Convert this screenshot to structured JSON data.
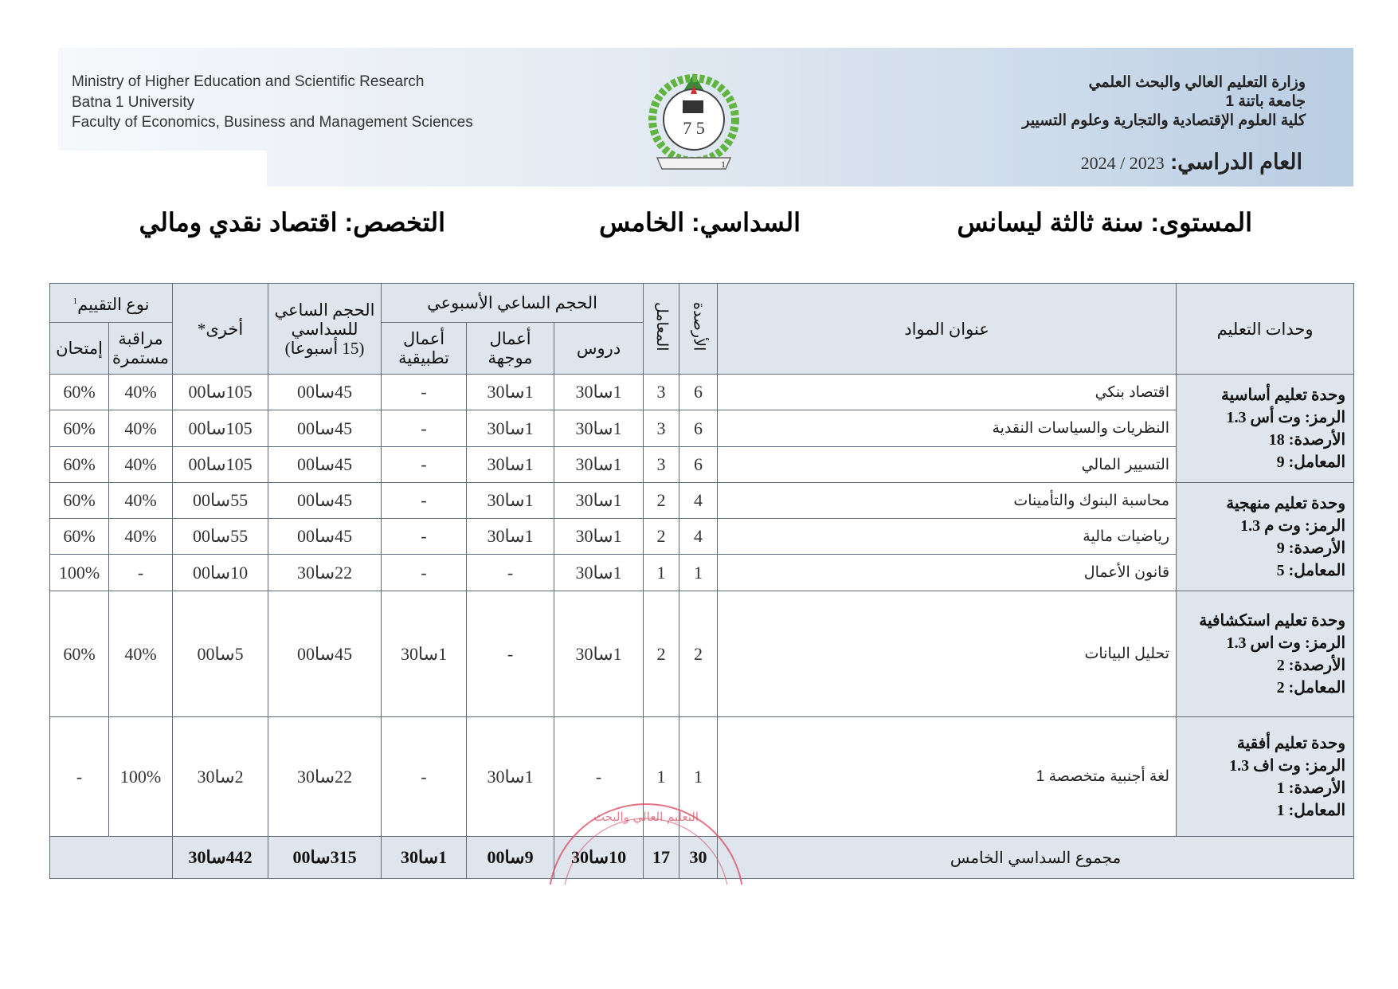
{
  "header": {
    "en_lines": [
      "Ministry of Higher Education and Scientific Research",
      "Batna 1 University",
      "Faculty of Economics, Business and Management Sciences"
    ],
    "ar_lines": [
      "وزارة التعليم العالي والبحث العلمي",
      "جامعة باتنة 1",
      "كلية العلوم الإقتصادية والتجارية وعلوم التسيير"
    ],
    "year_label": "العام الدراسي:",
    "year_value": "2024 / 2023",
    "logo": "university-crest"
  },
  "meta": {
    "level": "المستوى: سنة ثالثة ليسانس",
    "semester": "السداسي: الخامس",
    "specialty": "التخصص: اقتصاد نقدي ومالي"
  },
  "table": {
    "headers": {
      "units": "وحدات التعليم",
      "subject": "عنوان المواد",
      "credits": "الأرصدة",
      "coef": "المعامل",
      "weekly": "الحجم الساعي الأسبوعي",
      "lectures": "دروس",
      "td": "أعمال موجهة",
      "tp": "أعمال تطبيقية",
      "semester_volume_1": "الحجم الساعي",
      "semester_volume_2": "للسداسي",
      "semester_volume_3": "(15 أسبوعا)",
      "other": "أخرى*",
      "evaluation": "نوع التقييم",
      "evaluation_note": "1",
      "continuous": "مراقبة مستمرة",
      "exam": "إمتحان"
    },
    "units": [
      {
        "name": "وحدة تعليم أساسية",
        "code": "الرمز: وت أس 1.3",
        "credits": "الأرصدة: 18",
        "coef": "المعامل: 9"
      },
      {
        "name": "وحدة تعليم منهجية",
        "code": "الرمز: وت م 1.3",
        "credits": "الأرصدة: 9",
        "coef": "المعامل: 5"
      },
      {
        "name": "وحدة تعليم استكشافية",
        "code": "الرمز: وت اس 1.3",
        "credits": "الأرصدة: 2",
        "coef": "المعامل: 2"
      },
      {
        "name": "وحدة تعليم أفقية",
        "code": "الرمز: وت اف 1.3",
        "credits": "الأرصدة: 1",
        "coef": "المعامل: 1"
      }
    ],
    "rows": [
      {
        "subject": "اقتصاد بنكي",
        "credits": "6",
        "coef": "3",
        "lectures": "1سا30",
        "td": "1سا30",
        "tp": "-",
        "semester": "45سا00",
        "other": "105سا00",
        "continuous": "40%",
        "exam": "60%"
      },
      {
        "subject": "النظريات والسياسات النقدية",
        "credits": "6",
        "coef": "3",
        "lectures": "1سا30",
        "td": "1سا30",
        "tp": "-",
        "semester": "45سا00",
        "other": "105سا00",
        "continuous": "40%",
        "exam": "60%"
      },
      {
        "subject": "التسيير المالي",
        "credits": "6",
        "coef": "3",
        "lectures": "1سا30",
        "td": "1سا30",
        "tp": "-",
        "semester": "45سا00",
        "other": "105سا00",
        "continuous": "40%",
        "exam": "60%"
      },
      {
        "subject": "محاسبة البنوك والتأمينات",
        "credits": "4",
        "coef": "2",
        "lectures": "1سا30",
        "td": "1سا30",
        "tp": "-",
        "semester": "45سا00",
        "other": "55سا00",
        "continuous": "40%",
        "exam": "60%"
      },
      {
        "subject": "رياضيات مالية",
        "credits": "4",
        "coef": "2",
        "lectures": "1سا30",
        "td": "1سا30",
        "tp": "-",
        "semester": "45سا00",
        "other": "55سا00",
        "continuous": "40%",
        "exam": "60%"
      },
      {
        "subject": "قانون الأعمال",
        "credits": "1",
        "coef": "1",
        "lectures": "1سا30",
        "td": "-",
        "tp": "-",
        "semester": "22سا30",
        "other": "10سا00",
        "continuous": "-",
        "exam": "100%"
      },
      {
        "subject": "تحليل البيانات",
        "credits": "2",
        "coef": "2",
        "lectures": "1سا30",
        "td": "-",
        "tp": "1سا30",
        "semester": "45سا00",
        "other": "5سا00",
        "continuous": "40%",
        "exam": "60%"
      },
      {
        "subject": "لغة أجنبية متخصصة 1",
        "credits": "1",
        "coef": "1",
        "lectures": "-",
        "td": "1سا30",
        "tp": "-",
        "semester": "22سا30",
        "other": "2سا30",
        "continuous": "100%",
        "exam": "-"
      }
    ],
    "total": {
      "label": "مجموع السداسي الخامس",
      "credits": "30",
      "coef": "17",
      "lectures": "10سا30",
      "td": "9سا00",
      "tp": "1سا30",
      "semester": "315سا00",
      "other": "442سا30"
    }
  },
  "stamp": {
    "text": "التعليم العالي والبحث",
    "color": "#d9485f"
  },
  "colors": {
    "header_bg": "#dfe5ec",
    "banner_right": "#b9cde3",
    "border": "#5f6b78"
  }
}
